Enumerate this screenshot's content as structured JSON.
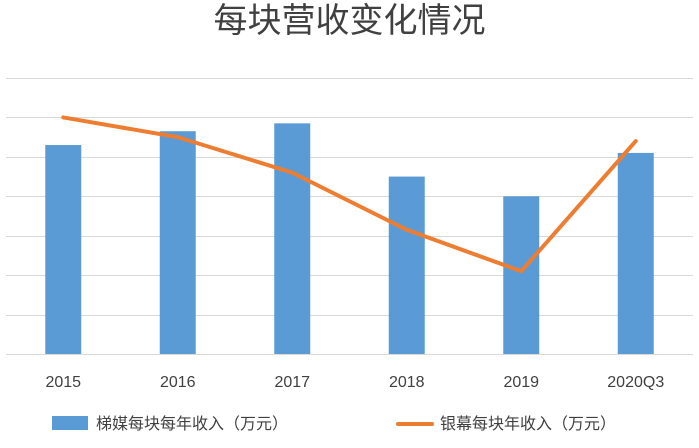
{
  "chart_data": {
    "type": "bar",
    "title": "每块营收变化情况",
    "xlabel": "",
    "ylabel": "",
    "categories": [
      "2015",
      "2016",
      "2017",
      "2018",
      "2019",
      "2020Q3"
    ],
    "ylim": [
      0,
      7
    ],
    "grid": true,
    "legend_position": "bottom",
    "series": [
      {
        "name": "梯媒每块每年收入（万元）",
        "type": "bar",
        "color": "#5B9BD5",
        "values": [
          5.3,
          5.65,
          5.85,
          4.5,
          4.0,
          5.1
        ]
      },
      {
        "name": "银幕每块年收入（万元）",
        "type": "line",
        "color": "#ED7D31",
        "values": [
          6.0,
          5.5,
          4.6,
          3.15,
          2.1,
          5.4
        ]
      }
    ]
  }
}
